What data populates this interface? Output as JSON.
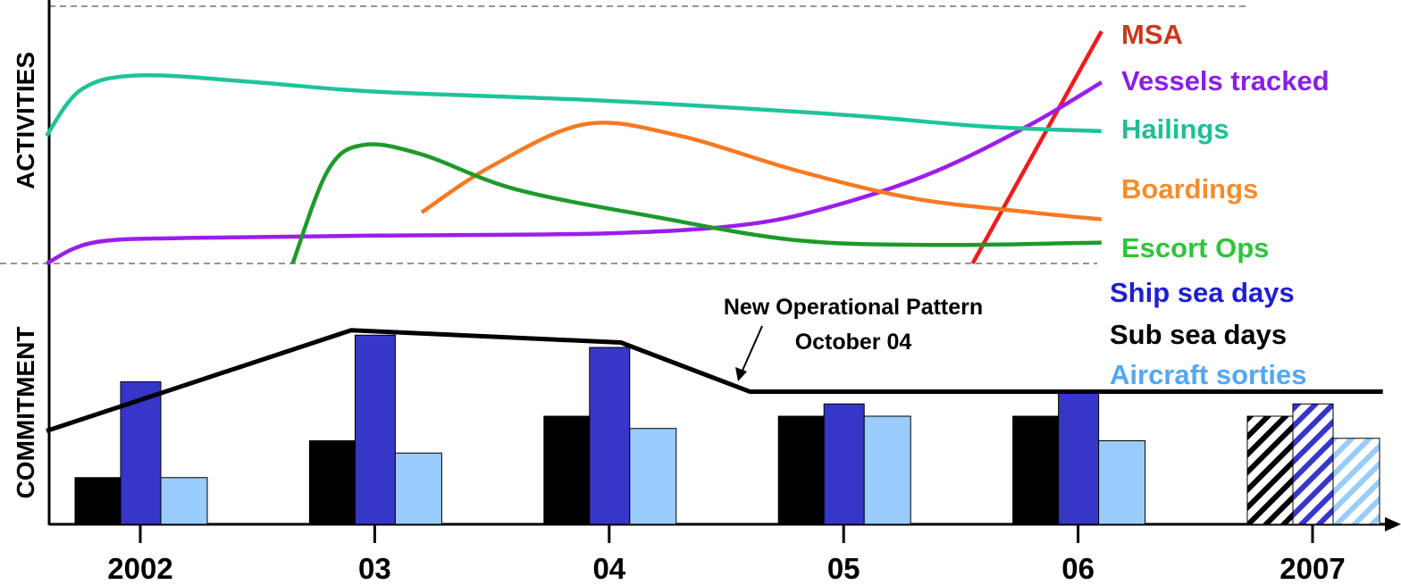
{
  "chart_data": {
    "type": "line",
    "activities_panel": {
      "ylabel": "ACTIVITIES",
      "series": [
        {
          "name": "MSA",
          "color": "#ee1c1c",
          "label_color": "#c8391a",
          "x": [
            2005.55,
            2006.1
          ],
          "y": [
            0,
            100
          ]
        },
        {
          "name": "Vessels tracked",
          "color": "#9b1eea",
          "label_color": "#8a1fe6",
          "x": [
            2001.6,
            2001.8,
            2002.2,
            2003.0,
            2004.0,
            2004.6,
            2005.0,
            2005.4,
            2005.8,
            2006.1
          ],
          "y": [
            0,
            9,
            11,
            12,
            13,
            17,
            26,
            40,
            60,
            78
          ]
        },
        {
          "name": "Hailings",
          "color": "#1fc39a",
          "label_color": "#1fbf95",
          "x": [
            2001.6,
            2001.75,
            2002.0,
            2002.5,
            2003.0,
            2004.0,
            2005.0,
            2005.6,
            2006.1
          ],
          "y": [
            55,
            75,
            81,
            78,
            74,
            70,
            64,
            59,
            57
          ]
        },
        {
          "name": "Boardings",
          "color": "#f57a22",
          "label_color": "#f58d2c",
          "x": [
            2003.2,
            2003.5,
            2003.9,
            2004.3,
            2004.8,
            2005.3,
            2005.8,
            2006.1
          ],
          "y": [
            22,
            42,
            60,
            55,
            40,
            28,
            22,
            19
          ]
        },
        {
          "name": "Escort Ops",
          "color": "#1e9a2a",
          "label_color": "#2ec43d",
          "x": [
            2002.65,
            2002.8,
            2002.95,
            2003.2,
            2003.6,
            2004.2,
            2004.8,
            2005.4,
            2006.1
          ],
          "y": [
            0,
            40,
            51,
            47,
            32,
            20,
            10,
            8,
            9
          ]
        }
      ]
    },
    "commitment_panel": {
      "ylabel": "COMMITMENT",
      "categories": [
        "2002",
        "03",
        "04",
        "05",
        "06",
        "2007"
      ],
      "ylim": [
        0,
        100
      ],
      "series": [
        {
          "name": "Ship sea days",
          "color": "#3636c8",
          "label_color": "#1f1fd0",
          "values": [
            58,
            77,
            72,
            49,
            54,
            49
          ]
        },
        {
          "name": "Sub sea days",
          "color": "#000000",
          "label_color": "#000000",
          "values": [
            19,
            34,
            44,
            44,
            44,
            44
          ]
        },
        {
          "name": "Aircraft sorties",
          "color": "#99cbfb",
          "label_color": "#52a8f2",
          "values": [
            19,
            29,
            39,
            44,
            34,
            35
          ]
        }
      ],
      "projected_category": "2007",
      "trend_line": {
        "x": [
          2001.6,
          2002.9,
          2004.05,
          2004.6,
          2007.3
        ],
        "y": [
          38,
          79,
          74,
          54,
          54
        ]
      },
      "annotation": {
        "line1": "New Operational Pattern",
        "line2": "October 04"
      }
    },
    "xaxis": {
      "ticks": [
        2002,
        2003,
        2004,
        2005,
        2006,
        2007
      ],
      "labels": [
        "2002",
        "03",
        "04",
        "05",
        "06",
        "2007"
      ]
    }
  }
}
